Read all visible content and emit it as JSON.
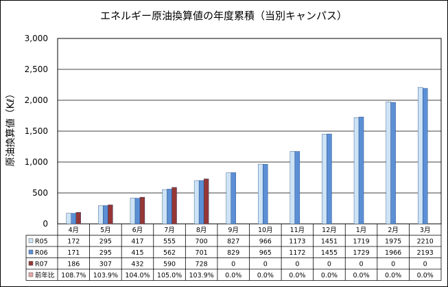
{
  "chart_data": {
    "type": "bar",
    "title": "エネルギー原油換算値の年度累積（当別キャンパス）",
    "xlabel": "",
    "ylabel": "原油換算値（Kℓ）",
    "ylim": [
      0,
      3000
    ],
    "yticks": [
      0,
      500,
      1000,
      1500,
      2000,
      2500,
      3000
    ],
    "ytick_labels": [
      "0",
      "500",
      "1,000",
      "1,500",
      "2,000",
      "2,500",
      "3,000"
    ],
    "grid": true,
    "categories": [
      "4月",
      "5月",
      "6月",
      "7月",
      "8月",
      "9月",
      "10月",
      "11月",
      "12月",
      "1月",
      "2月",
      "3月"
    ],
    "series": [
      {
        "name": "R05",
        "color": "#cde4f7",
        "values": [
          172,
          295,
          417,
          555,
          700,
          827,
          966,
          1173,
          1451,
          1719,
          1975,
          2210
        ]
      },
      {
        "name": "R06",
        "color": "#5b8fd6",
        "values": [
          171,
          295,
          415,
          562,
          701,
          829,
          965,
          1172,
          1455,
          1729,
          1966,
          2193
        ]
      },
      {
        "name": "R07",
        "color": "#953735",
        "values": [
          186,
          307,
          432,
          590,
          728,
          0,
          0,
          0,
          0,
          0,
          0,
          0
        ]
      }
    ],
    "ratio_row": {
      "name": "前年比",
      "color": "#e6a6a6",
      "values": [
        "108.7%",
        "103.9%",
        "104.0%",
        "105.0%",
        "103.9%",
        "0.0%",
        "0.0%",
        "0.0%",
        "0.0%",
        "0.0%",
        "0.0%",
        "0.0%"
      ]
    },
    "table_values": {
      "R05": [
        "172",
        "295",
        "417",
        "555",
        "700",
        "827",
        "966",
        "1173",
        "1451",
        "1719",
        "1975",
        "2210"
      ],
      "R06": [
        "171",
        "295",
        "415",
        "562",
        "701",
        "829",
        "965",
        "1172",
        "1455",
        "1729",
        "1966",
        "2193"
      ],
      "R07": [
        "186",
        "307",
        "432",
        "590",
        "728",
        "0",
        "0",
        "0",
        "0",
        "0",
        "0",
        "0"
      ]
    }
  }
}
